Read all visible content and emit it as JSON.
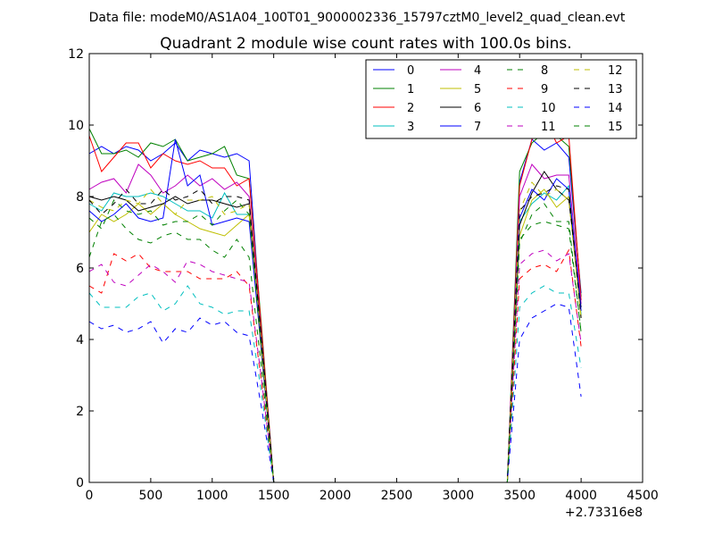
{
  "header": "Data file: modeM0/AS1A04_100T01_9000002336_15797cztM0_level2_quad_clean.evt",
  "chart_data": {
    "type": "line",
    "title": "Quadrant 2 module wise count rates with 100.0s bins.",
    "xlabel": "",
    "ylabel": "",
    "x_offset_label": "+2.73316e8",
    "xlim": [
      0,
      4500
    ],
    "ylim": [
      0,
      12
    ],
    "xticks": [
      0,
      500,
      1000,
      1500,
      2000,
      2500,
      3000,
      3500,
      4000,
      4500
    ],
    "yticks": [
      0,
      2,
      4,
      6,
      8,
      10,
      12
    ],
    "grid": false,
    "legend_position": "top-right",
    "x": [
      0,
      100,
      200,
      300,
      400,
      500,
      600,
      700,
      800,
      900,
      1000,
      1100,
      1200,
      1300,
      1400,
      1500,
      1600,
      1700,
      1800,
      1900,
      2000,
      2100,
      2200,
      2300,
      2400,
      2500,
      2600,
      2700,
      2800,
      2900,
      3000,
      3100,
      3200,
      3300,
      3400,
      3500,
      3600,
      3700,
      3800,
      3900,
      4000
    ],
    "series": [
      {
        "name": "0",
        "color": "#0000ff",
        "dash": "solid",
        "values": [
          9.2,
          9.4,
          9.2,
          9.4,
          9.3,
          9.0,
          9.2,
          9.5,
          9.0,
          9.3,
          9.2,
          9.1,
          9.2,
          9.0,
          4.2,
          0,
          0,
          0,
          0,
          0,
          0,
          0,
          0,
          0,
          0,
          0,
          0,
          0,
          0,
          0,
          0,
          0,
          0,
          0,
          0,
          8.4,
          9.6,
          9.3,
          9.5,
          9.1,
          5.3
        ]
      },
      {
        "name": "1",
        "color": "#008000",
        "dash": "solid",
        "values": [
          9.9,
          9.2,
          9.2,
          9.3,
          9.1,
          9.5,
          9.4,
          9.6,
          9.0,
          9.1,
          9.2,
          9.4,
          8.6,
          8.5,
          4.4,
          0,
          0,
          0,
          0,
          0,
          0,
          0,
          0,
          0,
          0,
          0,
          0,
          0,
          0,
          0,
          0,
          0,
          0,
          0,
          0,
          8.7,
          9.5,
          9.8,
          9.7,
          9.4,
          5.2
        ]
      },
      {
        "name": "2",
        "color": "#ff0000",
        "dash": "solid",
        "values": [
          9.7,
          8.7,
          9.1,
          9.5,
          9.5,
          8.8,
          9.2,
          9.0,
          8.9,
          9.0,
          8.8,
          8.8,
          8.3,
          8.5,
          4.3,
          0,
          0,
          0,
          0,
          0,
          0,
          0,
          0,
          0,
          0,
          0,
          0,
          0,
          0,
          0,
          0,
          0,
          0,
          0,
          0,
          8.3,
          9.6,
          10.2,
          9.5,
          9.7,
          5.1
        ]
      },
      {
        "name": "3",
        "color": "#00bfbf",
        "dash": "solid",
        "values": [
          7.8,
          7.6,
          8.1,
          8.0,
          8.0,
          8.1,
          8.0,
          7.8,
          7.6,
          7.6,
          7.4,
          8.1,
          7.5,
          7.5,
          3.8,
          0,
          0,
          0,
          0,
          0,
          0,
          0,
          0,
          0,
          0,
          0,
          0,
          0,
          0,
          0,
          0,
          0,
          0,
          0,
          0,
          7.3,
          7.8,
          8.1,
          7.9,
          8.3,
          4.7
        ]
      },
      {
        "name": "4",
        "color": "#bf00bf",
        "dash": "solid",
        "values": [
          8.2,
          8.4,
          8.5,
          8.1,
          8.9,
          8.6,
          8.1,
          8.3,
          8.6,
          8.3,
          8.5,
          8.2,
          8.4,
          8.0,
          4.1,
          0,
          0,
          0,
          0,
          0,
          0,
          0,
          0,
          0,
          0,
          0,
          0,
          0,
          0,
          0,
          0,
          0,
          0,
          0,
          0,
          8.0,
          8.9,
          8.5,
          8.6,
          8.6,
          5.0
        ]
      },
      {
        "name": "5",
        "color": "#bfbf00",
        "dash": "solid",
        "values": [
          7.0,
          7.5,
          7.3,
          7.5,
          7.8,
          7.5,
          7.8,
          7.5,
          7.3,
          7.1,
          7.0,
          6.9,
          7.2,
          7.5,
          3.6,
          0,
          0,
          0,
          0,
          0,
          0,
          0,
          0,
          0,
          0,
          0,
          0,
          0,
          0,
          0,
          0,
          0,
          0,
          0,
          0,
          6.9,
          7.9,
          8.2,
          7.7,
          8.0,
          4.6
        ]
      },
      {
        "name": "6",
        "color": "#000000",
        "dash": "solid",
        "values": [
          8.0,
          7.9,
          8.0,
          7.9,
          7.6,
          7.7,
          7.8,
          8.0,
          7.8,
          7.9,
          7.9,
          7.8,
          7.7,
          7.8,
          4.0,
          0,
          0,
          0,
          0,
          0,
          0,
          0,
          0,
          0,
          0,
          0,
          0,
          0,
          0,
          0,
          0,
          0,
          0,
          0,
          0,
          7.2,
          8.1,
          8.7,
          8.2,
          7.9,
          4.9
        ]
      },
      {
        "name": "7",
        "color": "#0000ff",
        "dash": "solid",
        "values": [
          7.6,
          7.3,
          7.5,
          7.8,
          7.4,
          7.3,
          7.4,
          9.6,
          8.3,
          8.6,
          7.2,
          7.3,
          7.4,
          7.3,
          3.7,
          0,
          0,
          0,
          0,
          0,
          0,
          0,
          0,
          0,
          0,
          0,
          0,
          0,
          0,
          0,
          0,
          0,
          0,
          0,
          0,
          7.4,
          8.2,
          7.9,
          8.5,
          8.2,
          4.8
        ]
      },
      {
        "name": "8",
        "color": "#008000",
        "dash": "dashed",
        "values": [
          7.4,
          7.1,
          7.9,
          7.6,
          7.5,
          7.6,
          7.2,
          7.3,
          7.3,
          7.5,
          7.2,
          7.6,
          7.9,
          7.5,
          3.7,
          0,
          0,
          0,
          0,
          0,
          0,
          0,
          0,
          0,
          0,
          0,
          0,
          0,
          0,
          0,
          0,
          0,
          0,
          0,
          0,
          6.7,
          7.5,
          7.8,
          7.3,
          7.3,
          4.2
        ]
      },
      {
        "name": "9",
        "color": "#ff0000",
        "dash": "dashed",
        "values": [
          5.5,
          5.3,
          6.4,
          6.2,
          6.4,
          6.0,
          5.9,
          5.9,
          5.9,
          5.7,
          5.7,
          5.7,
          5.9,
          5.5,
          2.8,
          0,
          0,
          0,
          0,
          0,
          0,
          0,
          0,
          0,
          0,
          0,
          0,
          0,
          0,
          0,
          0,
          0,
          0,
          0,
          0,
          5.7,
          6.0,
          6.1,
          5.9,
          6.5,
          3.8
        ]
      },
      {
        "name": "10",
        "color": "#00bfbf",
        "dash": "dashed",
        "values": [
          5.3,
          4.9,
          4.9,
          4.9,
          5.2,
          5.3,
          4.8,
          5.0,
          5.5,
          5.0,
          4.9,
          4.7,
          4.8,
          4.8,
          2.5,
          0,
          0,
          0,
          0,
          0,
          0,
          0,
          0,
          0,
          0,
          0,
          0,
          0,
          0,
          0,
          0,
          0,
          0,
          0,
          0,
          4.9,
          5.3,
          5.5,
          5.3,
          5.3,
          3.2
        ]
      },
      {
        "name": "11",
        "color": "#bf00bf",
        "dash": "dashed",
        "values": [
          5.9,
          6.1,
          5.6,
          5.5,
          5.8,
          6.1,
          5.9,
          5.6,
          6.2,
          6.1,
          5.9,
          5.8,
          5.7,
          5.6,
          2.9,
          0,
          0,
          0,
          0,
          0,
          0,
          0,
          0,
          0,
          0,
          0,
          0,
          0,
          0,
          0,
          0,
          0,
          0,
          0,
          0,
          6.1,
          6.4,
          6.5,
          6.2,
          6.4,
          3.9
        ]
      },
      {
        "name": "12",
        "color": "#bfbf00",
        "dash": "dashed",
        "values": [
          7.9,
          7.7,
          7.6,
          7.9,
          7.8,
          8.2,
          7.8,
          7.5,
          7.9,
          7.9,
          8.0,
          7.5,
          7.6,
          7.8,
          3.9,
          0,
          0,
          0,
          0,
          0,
          0,
          0,
          0,
          0,
          0,
          0,
          0,
          0,
          0,
          0,
          0,
          0,
          0,
          0,
          0,
          7.6,
          8.4,
          8.0,
          8.2,
          7.9,
          4.6
        ]
      },
      {
        "name": "13",
        "color": "#000000",
        "dash": "dashed",
        "values": [
          7.9,
          7.5,
          7.8,
          8.2,
          7.8,
          7.8,
          8.2,
          7.9,
          8.0,
          8.2,
          7.8,
          8.0,
          8.0,
          7.9,
          4.0,
          0,
          0,
          0,
          0,
          0,
          0,
          0,
          0,
          0,
          0,
          0,
          0,
          0,
          0,
          0,
          0,
          0,
          0,
          0,
          0,
          7.6,
          8.0,
          8.1,
          8.3,
          8.2,
          4.6
        ]
      },
      {
        "name": "14",
        "color": "#0000ff",
        "dash": "dashed",
        "values": [
          4.5,
          4.3,
          4.4,
          4.2,
          4.3,
          4.5,
          3.9,
          4.3,
          4.2,
          4.6,
          4.4,
          4.5,
          4.2,
          4.1,
          2.1,
          0,
          0,
          0,
          0,
          0,
          0,
          0,
          0,
          0,
          0,
          0,
          0,
          0,
          0,
          0,
          0,
          0,
          0,
          0,
          0,
          4.0,
          4.6,
          4.8,
          5.0,
          4.9,
          2.4
        ]
      },
      {
        "name": "15",
        "color": "#008000",
        "dash": "dashed",
        "values": [
          6.3,
          7.3,
          7.5,
          7.1,
          6.8,
          6.7,
          6.9,
          7.0,
          6.8,
          6.8,
          6.5,
          6.3,
          6.8,
          6.3,
          3.2,
          0,
          0,
          0,
          0,
          0,
          0,
          0,
          0,
          0,
          0,
          0,
          0,
          0,
          0,
          0,
          0,
          0,
          0,
          0,
          0,
          6.8,
          7.2,
          7.3,
          7.2,
          7.1,
          4.2
        ]
      }
    ]
  }
}
